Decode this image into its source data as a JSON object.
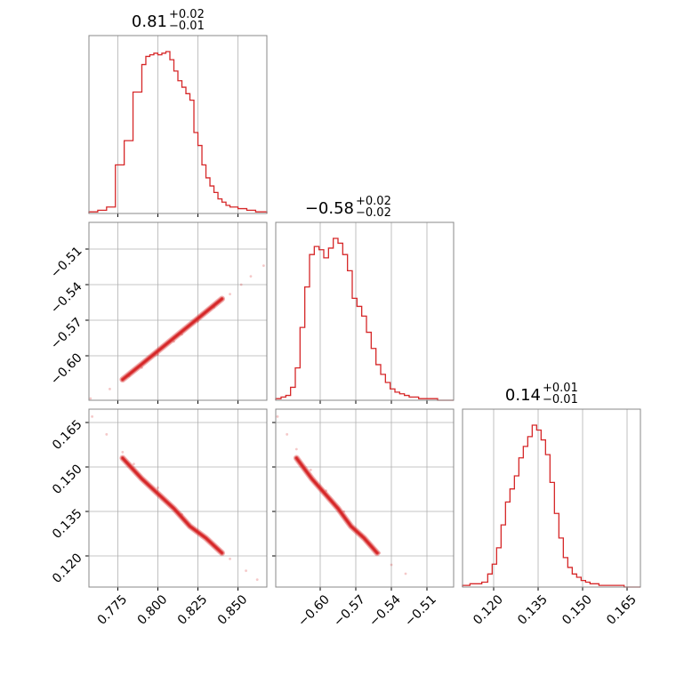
{
  "chart_data": {
    "type": "corner",
    "color": "#d62728",
    "grid": true,
    "parameters": [
      {
        "index": 0,
        "range": [
          0.757,
          0.868
        ],
        "ticks": [
          0.775,
          0.8,
          0.825,
          0.85
        ],
        "tick_labels": [
          "0.775",
          "0.800",
          "0.825",
          "0.850"
        ]
      },
      {
        "index": 1,
        "range": [
          -0.6375,
          -0.4875
        ],
        "ticks": [
          -0.6,
          -0.57,
          -0.54,
          -0.51
        ],
        "tick_labels": [
          "−0.60",
          "−0.57",
          "−0.54",
          "−0.51"
        ]
      },
      {
        "index": 2,
        "range": [
          0.1095,
          0.1695
        ],
        "ticks": [
          0.12,
          0.135,
          0.15,
          0.165
        ],
        "tick_labels": [
          "0.120",
          "0.135",
          "0.150",
          "0.165"
        ]
      }
    ],
    "titles": [
      {
        "param": 0,
        "median": "0.81",
        "plus": "+0.02",
        "minus": "−0.01"
      },
      {
        "param": 1,
        "median": "−0.58",
        "plus": "+0.02",
        "minus": "−0.02"
      },
      {
        "param": 2,
        "median": "0.14",
        "plus": "+0.01",
        "minus": "−0.01"
      }
    ],
    "histograms": [
      {
        "param": 0,
        "bin_edges": [
          0.757,
          0.7625,
          0.768,
          0.7735,
          0.779,
          0.7845,
          0.79,
          0.7925,
          0.795,
          0.7975,
          0.8,
          0.8025,
          0.805,
          0.8075,
          0.81,
          0.8125,
          0.815,
          0.8175,
          0.82,
          0.8225,
          0.825,
          0.8275,
          0.83,
          0.8325,
          0.835,
          0.8375,
          0.84,
          0.8425,
          0.845,
          0.85,
          0.8555,
          0.861,
          0.868
        ],
        "counts": [
          1,
          2,
          4,
          30,
          45,
          75,
          92,
          97,
          98,
          99,
          98,
          99,
          100,
          95,
          88,
          82,
          78,
          74,
          70,
          50,
          42,
          30,
          22,
          17,
          13,
          9,
          7,
          5,
          4,
          3,
          2,
          1
        ]
      },
      {
        "param": 1,
        "bin_edges": [
          -0.6375,
          -0.633,
          -0.629,
          -0.625,
          -0.621,
          -0.617,
          -0.613,
          -0.609,
          -0.605,
          -0.601,
          -0.597,
          -0.593,
          -0.589,
          -0.585,
          -0.581,
          -0.577,
          -0.573,
          -0.569,
          -0.565,
          -0.561,
          -0.557,
          -0.553,
          -0.549,
          -0.545,
          -0.541,
          -0.537,
          -0.533,
          -0.529,
          -0.525,
          -0.521,
          -0.517,
          -0.513,
          -0.509,
          -0.505,
          -0.501,
          -0.497,
          -0.4875
        ],
        "counts": [
          1,
          2,
          3,
          8,
          20,
          45,
          70,
          90,
          95,
          93,
          88,
          94,
          100,
          97,
          90,
          80,
          63,
          58,
          52,
          42,
          32,
          22,
          16,
          11,
          7,
          5,
          4,
          3,
          2,
          2,
          1,
          1,
          1,
          1,
          0,
          0
        ]
      },
      {
        "param": 2,
        "bin_edges": [
          0.1095,
          0.112,
          0.114,
          0.116,
          0.118,
          0.1195,
          0.121,
          0.1225,
          0.124,
          0.1255,
          0.127,
          0.1285,
          0.13,
          0.1315,
          0.133,
          0.1345,
          0.136,
          0.1375,
          0.139,
          0.1405,
          0.142,
          0.1435,
          0.145,
          0.1465,
          0.148,
          0.1495,
          0.151,
          0.1525,
          0.154,
          0.1555,
          0.158,
          0.161,
          0.164,
          0.1695
        ],
        "counts": [
          1,
          2,
          2,
          3,
          8,
          14,
          24,
          38,
          52,
          60,
          68,
          79,
          86,
          92,
          99,
          96,
          90,
          81,
          64,
          45,
          30,
          18,
          12,
          8,
          6,
          4,
          3,
          2,
          2,
          1,
          1,
          1,
          0
        ]
      }
    ],
    "scatter_pairs": [
      {
        "x_param": 0,
        "y_param": 1,
        "points": [
          [
            0.758,
            -0.636
          ],
          [
            0.77,
            -0.628
          ],
          [
            0.782,
            -0.617
          ],
          [
            0.79,
            -0.61
          ],
          [
            0.8,
            -0.599
          ],
          [
            0.81,
            -0.588
          ],
          [
            0.815,
            -0.582
          ],
          [
            0.825,
            -0.571
          ],
          [
            0.835,
            -0.559
          ],
          [
            0.845,
            -0.548
          ],
          [
            0.852,
            -0.54
          ],
          [
            0.858,
            -0.533
          ],
          [
            0.866,
            -0.524
          ]
        ],
        "density_ridge": [
          [
            0.778,
            -0.62
          ],
          [
            0.79,
            -0.607
          ],
          [
            0.8,
            -0.596
          ],
          [
            0.81,
            -0.585
          ],
          [
            0.82,
            -0.574
          ],
          [
            0.83,
            -0.563
          ],
          [
            0.84,
            -0.552
          ]
        ]
      },
      {
        "x_param": 0,
        "y_param": 2,
        "points": [
          [
            0.759,
            0.167
          ],
          [
            0.768,
            0.161
          ],
          [
            0.778,
            0.155
          ],
          [
            0.785,
            0.151
          ],
          [
            0.8,
            0.143
          ],
          [
            0.815,
            0.134
          ],
          [
            0.83,
            0.126
          ],
          [
            0.845,
            0.119
          ],
          [
            0.855,
            0.115
          ],
          [
            0.862,
            0.112
          ]
        ],
        "density_ridge": [
          [
            0.778,
            0.153
          ],
          [
            0.79,
            0.146
          ],
          [
            0.8,
            0.141
          ],
          [
            0.81,
            0.136
          ],
          [
            0.82,
            0.13
          ],
          [
            0.83,
            0.126
          ],
          [
            0.84,
            0.121
          ]
        ]
      },
      {
        "x_param": 1,
        "y_param": 2,
        "points": [
          [
            -0.636,
            0.167
          ],
          [
            -0.628,
            0.161
          ],
          [
            -0.62,
            0.156
          ],
          [
            -0.608,
            0.149
          ],
          [
            -0.595,
            0.142
          ],
          [
            -0.58,
            0.135
          ],
          [
            -0.565,
            0.127
          ],
          [
            -0.55,
            0.121
          ],
          [
            -0.54,
            0.117
          ],
          [
            -0.528,
            0.114
          ]
        ],
        "density_ridge": [
          [
            -0.62,
            0.153
          ],
          [
            -0.607,
            0.146
          ],
          [
            -0.596,
            0.141
          ],
          [
            -0.585,
            0.136
          ],
          [
            -0.574,
            0.13
          ],
          [
            -0.563,
            0.126
          ],
          [
            -0.552,
            0.121
          ]
        ]
      }
    ]
  }
}
